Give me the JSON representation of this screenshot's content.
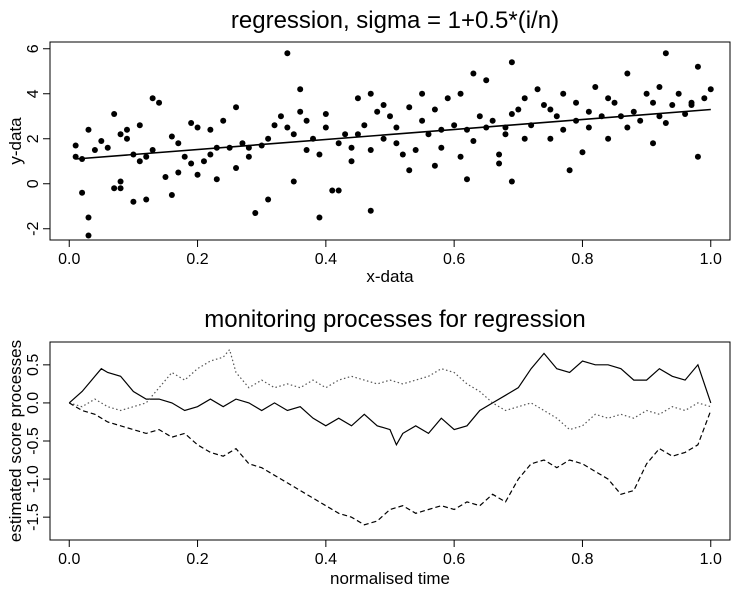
{
  "chart_data": [
    {
      "type": "scatter",
      "title": "regression, sigma = 1+0.5*(i/n)",
      "xlabel": "x-data",
      "ylabel": "y-data",
      "xlim": [
        -0.03,
        1.03
      ],
      "ylim": [
        -2.5,
        6.3
      ],
      "x_ticks": [
        0.0,
        0.2,
        0.4,
        0.6,
        0.8,
        1.0
      ],
      "x_tick_labels": [
        "0.0",
        "0.2",
        "0.4",
        "0.6",
        "0.8",
        "1.0"
      ],
      "y_ticks": [
        -2,
        0,
        2,
        4,
        6
      ],
      "y_tick_labels": [
        "-2",
        "0",
        "2",
        "4",
        "6"
      ],
      "grid": false,
      "legend": "none",
      "series": [
        {
          "kind": "points",
          "points": [
            [
              0.01,
              1.2
            ],
            [
              0.01,
              1.7
            ],
            [
              0.02,
              1.1
            ],
            [
              0.02,
              -0.4
            ],
            [
              0.03,
              2.4
            ],
            [
              0.03,
              -2.3
            ],
            [
              0.03,
              -1.5
            ],
            [
              0.04,
              1.5
            ],
            [
              0.05,
              1.9
            ],
            [
              0.06,
              1.6
            ],
            [
              0.07,
              3.1
            ],
            [
              0.07,
              -0.2
            ],
            [
              0.08,
              2.2
            ],
            [
              0.08,
              -0.2
            ],
            [
              0.08,
              0.1
            ],
            [
              0.09,
              2.4
            ],
            [
              0.09,
              2.0
            ],
            [
              0.1,
              1.3
            ],
            [
              0.1,
              -0.8
            ],
            [
              0.11,
              2.6
            ],
            [
              0.11,
              1.0
            ],
            [
              0.12,
              -0.7
            ],
            [
              0.12,
              1.2
            ],
            [
              0.13,
              1.5
            ],
            [
              0.13,
              3.8
            ],
            [
              0.14,
              3.6
            ],
            [
              0.15,
              0.3
            ],
            [
              0.16,
              2.1
            ],
            [
              0.16,
              -0.5
            ],
            [
              0.17,
              1.8
            ],
            [
              0.17,
              0.5
            ],
            [
              0.18,
              1.2
            ],
            [
              0.19,
              2.7
            ],
            [
              0.19,
              0.9
            ],
            [
              0.2,
              0.4
            ],
            [
              0.2,
              2.5
            ],
            [
              0.21,
              1.0
            ],
            [
              0.22,
              2.4
            ],
            [
              0.22,
              1.3
            ],
            [
              0.23,
              0.2
            ],
            [
              0.23,
              1.6
            ],
            [
              0.24,
              2.8
            ],
            [
              0.25,
              1.6
            ],
            [
              0.26,
              0.7
            ],
            [
              0.26,
              3.4
            ],
            [
              0.27,
              1.8
            ],
            [
              0.28,
              1.6
            ],
            [
              0.28,
              1.2
            ],
            [
              0.29,
              -1.3
            ],
            [
              0.3,
              1.7
            ],
            [
              0.31,
              2.0
            ],
            [
              0.31,
              -0.7
            ],
            [
              0.32,
              2.6
            ],
            [
              0.33,
              3.0
            ],
            [
              0.34,
              2.5
            ],
            [
              0.34,
              5.8
            ],
            [
              0.35,
              0.1
            ],
            [
              0.35,
              2.2
            ],
            [
              0.36,
              3.2
            ],
            [
              0.36,
              4.2
            ],
            [
              0.37,
              1.5
            ],
            [
              0.37,
              2.8
            ],
            [
              0.38,
              2.0
            ],
            [
              0.39,
              1.3
            ],
            [
              0.39,
              -1.5
            ],
            [
              0.4,
              2.5
            ],
            [
              0.4,
              3.1
            ],
            [
              0.41,
              -0.3
            ],
            [
              0.42,
              1.8
            ],
            [
              0.42,
              -0.3
            ],
            [
              0.43,
              2.2
            ],
            [
              0.44,
              1.0
            ],
            [
              0.44,
              1.6
            ],
            [
              0.45,
              2.2
            ],
            [
              0.45,
              3.8
            ],
            [
              0.46,
              2.6
            ],
            [
              0.47,
              1.5
            ],
            [
              0.47,
              -1.2
            ],
            [
              0.47,
              4.0
            ],
            [
              0.48,
              3.2
            ],
            [
              0.49,
              2.0
            ],
            [
              0.49,
              3.5
            ],
            [
              0.5,
              3.0
            ],
            [
              0.51,
              1.8
            ],
            [
              0.51,
              2.5
            ],
            [
              0.52,
              1.3
            ],
            [
              0.53,
              3.4
            ],
            [
              0.53,
              0.6
            ],
            [
              0.54,
              1.5
            ],
            [
              0.55,
              2.8
            ],
            [
              0.55,
              4.0
            ],
            [
              0.56,
              2.2
            ],
            [
              0.57,
              3.3
            ],
            [
              0.57,
              0.8
            ],
            [
              0.58,
              1.6
            ],
            [
              0.58,
              2.4
            ],
            [
              0.59,
              3.8
            ],
            [
              0.6,
              2.6
            ],
            [
              0.61,
              1.2
            ],
            [
              0.61,
              4.0
            ],
            [
              0.62,
              2.4
            ],
            [
              0.62,
              0.2
            ],
            [
              0.63,
              4.9
            ],
            [
              0.63,
              1.9
            ],
            [
              0.64,
              3.0
            ],
            [
              0.65,
              2.5
            ],
            [
              0.65,
              4.6
            ],
            [
              0.66,
              2.8
            ],
            [
              0.67,
              0.9
            ],
            [
              0.67,
              1.3
            ],
            [
              0.68,
              2.2
            ],
            [
              0.68,
              2.5
            ],
            [
              0.69,
              3.1
            ],
            [
              0.69,
              0.1
            ],
            [
              0.69,
              5.4
            ],
            [
              0.7,
              3.3
            ],
            [
              0.71,
              2.0
            ],
            [
              0.71,
              3.8
            ],
            [
              0.72,
              2.6
            ],
            [
              0.73,
              4.2
            ],
            [
              0.74,
              3.5
            ],
            [
              0.75,
              2.0
            ],
            [
              0.75,
              3.3
            ],
            [
              0.76,
              3.0
            ],
            [
              0.77,
              2.4
            ],
            [
              0.77,
              4.0
            ],
            [
              0.78,
              0.6
            ],
            [
              0.79,
              2.8
            ],
            [
              0.79,
              3.6
            ],
            [
              0.8,
              1.4
            ],
            [
              0.81,
              3.2
            ],
            [
              0.81,
              2.5
            ],
            [
              0.82,
              4.3
            ],
            [
              0.83,
              3.0
            ],
            [
              0.84,
              2.0
            ],
            [
              0.84,
              3.8
            ],
            [
              0.85,
              3.6
            ],
            [
              0.86,
              3.0
            ],
            [
              0.87,
              2.5
            ],
            [
              0.87,
              4.9
            ],
            [
              0.88,
              3.2
            ],
            [
              0.89,
              2.8
            ],
            [
              0.9,
              4.0
            ],
            [
              0.91,
              1.8
            ],
            [
              0.91,
              3.6
            ],
            [
              0.92,
              4.3
            ],
            [
              0.92,
              3.0
            ],
            [
              0.93,
              5.8
            ],
            [
              0.93,
              2.7
            ],
            [
              0.94,
              3.5
            ],
            [
              0.95,
              4.0
            ],
            [
              0.96,
              3.1
            ],
            [
              0.97,
              3.5
            ],
            [
              0.97,
              3.6
            ],
            [
              0.98,
              5.2
            ],
            [
              0.98,
              1.2
            ],
            [
              0.99,
              3.8
            ],
            [
              1.0,
              4.2
            ]
          ]
        },
        {
          "kind": "fitted-line",
          "x": [
            0.01,
            1.0
          ],
          "y": [
            1.1,
            3.3
          ]
        }
      ]
    },
    {
      "type": "line",
      "title": "monitoring processes for regression",
      "xlabel": "normalised time",
      "ylabel": "estimated score processes",
      "xlim": [
        -0.03,
        1.03
      ],
      "ylim": [
        -1.8,
        0.8
      ],
      "x_ticks": [
        0.0,
        0.2,
        0.4,
        0.6,
        0.8,
        1.0
      ],
      "x_tick_labels": [
        "0.0",
        "0.2",
        "0.4",
        "0.6",
        "0.8",
        "1.0"
      ],
      "y_ticks": [
        -1.5,
        -1.0,
        -0.5,
        0.0,
        0.5
      ],
      "y_tick_labels": [
        "-1.5",
        "-1.0",
        "-0.5",
        "0.0",
        "0.5"
      ],
      "grid": false,
      "legend": "none",
      "series": [
        {
          "style": "solid",
          "x": [
            0.0,
            0.02,
            0.04,
            0.05,
            0.06,
            0.08,
            0.1,
            0.12,
            0.14,
            0.16,
            0.18,
            0.2,
            0.22,
            0.24,
            0.26,
            0.28,
            0.3,
            0.32,
            0.34,
            0.36,
            0.38,
            0.4,
            0.42,
            0.44,
            0.46,
            0.48,
            0.5,
            0.51,
            0.52,
            0.54,
            0.56,
            0.58,
            0.6,
            0.62,
            0.64,
            0.66,
            0.68,
            0.7,
            0.72,
            0.74,
            0.76,
            0.78,
            0.8,
            0.82,
            0.84,
            0.86,
            0.88,
            0.9,
            0.92,
            0.94,
            0.96,
            0.98,
            1.0
          ],
          "y": [
            0.0,
            0.15,
            0.35,
            0.45,
            0.4,
            0.35,
            0.15,
            0.05,
            0.05,
            0.0,
            -0.1,
            -0.05,
            0.05,
            -0.05,
            0.05,
            0.0,
            -0.1,
            0.0,
            -0.1,
            -0.05,
            -0.2,
            -0.3,
            -0.2,
            -0.3,
            -0.15,
            -0.3,
            -0.35,
            -0.55,
            -0.4,
            -0.3,
            -0.4,
            -0.2,
            -0.35,
            -0.3,
            -0.1,
            0.0,
            0.1,
            0.2,
            0.45,
            0.65,
            0.45,
            0.4,
            0.55,
            0.5,
            0.5,
            0.45,
            0.3,
            0.3,
            0.45,
            0.35,
            0.3,
            0.5,
            0.0
          ]
        },
        {
          "style": "dotted",
          "x": [
            0.0,
            0.02,
            0.04,
            0.06,
            0.08,
            0.1,
            0.12,
            0.14,
            0.16,
            0.18,
            0.2,
            0.22,
            0.24,
            0.25,
            0.26,
            0.28,
            0.3,
            0.32,
            0.34,
            0.36,
            0.38,
            0.4,
            0.42,
            0.44,
            0.46,
            0.48,
            0.5,
            0.52,
            0.54,
            0.56,
            0.58,
            0.6,
            0.62,
            0.64,
            0.66,
            0.68,
            0.7,
            0.72,
            0.74,
            0.76,
            0.78,
            0.8,
            0.82,
            0.84,
            0.86,
            0.88,
            0.9,
            0.92,
            0.94,
            0.96,
            0.98,
            1.0
          ],
          "y": [
            0.0,
            -0.05,
            0.05,
            -0.05,
            -0.1,
            -0.05,
            0.0,
            0.2,
            0.4,
            0.3,
            0.45,
            0.55,
            0.6,
            0.7,
            0.4,
            0.2,
            0.3,
            0.2,
            0.25,
            0.2,
            0.3,
            0.2,
            0.3,
            0.35,
            0.3,
            0.25,
            0.3,
            0.25,
            0.3,
            0.35,
            0.45,
            0.4,
            0.25,
            0.15,
            0.0,
            -0.1,
            -0.05,
            0.0,
            -0.1,
            -0.2,
            -0.35,
            -0.3,
            -0.15,
            -0.2,
            -0.15,
            -0.2,
            -0.1,
            -0.15,
            -0.05,
            -0.1,
            0.0,
            -0.05
          ]
        },
        {
          "style": "dashed",
          "x": [
            0.0,
            0.02,
            0.04,
            0.06,
            0.08,
            0.1,
            0.12,
            0.14,
            0.16,
            0.18,
            0.2,
            0.22,
            0.24,
            0.26,
            0.28,
            0.3,
            0.32,
            0.34,
            0.36,
            0.38,
            0.4,
            0.42,
            0.44,
            0.46,
            0.48,
            0.5,
            0.52,
            0.54,
            0.56,
            0.58,
            0.6,
            0.62,
            0.64,
            0.66,
            0.68,
            0.7,
            0.72,
            0.74,
            0.76,
            0.78,
            0.8,
            0.82,
            0.84,
            0.86,
            0.88,
            0.9,
            0.92,
            0.94,
            0.96,
            0.98,
            1.0
          ],
          "y": [
            0.0,
            -0.1,
            -0.15,
            -0.25,
            -0.3,
            -0.35,
            -0.4,
            -0.35,
            -0.45,
            -0.4,
            -0.55,
            -0.65,
            -0.7,
            -0.6,
            -0.8,
            -0.85,
            -0.95,
            -1.05,
            -1.15,
            -1.25,
            -1.35,
            -1.45,
            -1.5,
            -1.6,
            -1.55,
            -1.4,
            -1.35,
            -1.45,
            -1.4,
            -1.35,
            -1.4,
            -1.3,
            -1.35,
            -1.2,
            -1.3,
            -1.0,
            -0.8,
            -0.75,
            -0.85,
            -0.75,
            -0.8,
            -0.9,
            -1.0,
            -1.2,
            -1.15,
            -0.8,
            -0.6,
            -0.7,
            -0.65,
            -0.55,
            -0.1
          ]
        }
      ]
    }
  ]
}
